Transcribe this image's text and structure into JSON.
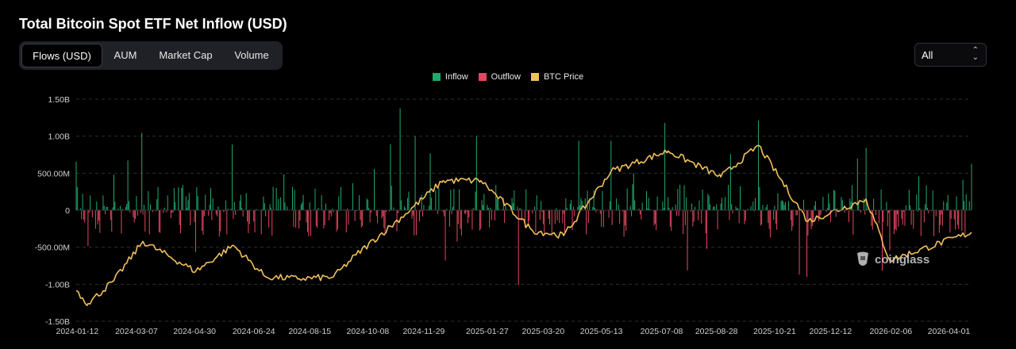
{
  "title": "Total Bitcoin Spot ETF Net Inflow (USD)",
  "tabs": [
    {
      "label": "Flows (USD)",
      "active": true
    },
    {
      "label": "AUM",
      "active": false
    },
    {
      "label": "Market Cap",
      "active": false
    },
    {
      "label": "Volume",
      "active": false
    }
  ],
  "range_select": {
    "value": "All"
  },
  "legend": [
    {
      "label": "Inflow",
      "color": "#21a86a"
    },
    {
      "label": "Outflow",
      "color": "#e0485f"
    },
    {
      "label": "BTC Price",
      "color": "#f0c05a"
    }
  ],
  "watermark": "coinglass",
  "chart_data": {
    "type": "bar",
    "title": "Total Bitcoin Spot ETF Net Inflow (USD)",
    "series_names": [
      "Inflow",
      "Outflow",
      "BTC Price"
    ],
    "y_ticks": [
      "1.50B",
      "1.00B",
      "500.00M",
      "0",
      "-500.00M",
      "-1.00B",
      "-1.50B"
    ],
    "ylim": [
      -1500000000,
      1500000000
    ],
    "x_ticks": [
      "2024-01-12",
      "2024-03-07",
      "2024-04-30",
      "2024-06-24",
      "2024-08-15",
      "2024-10-08",
      "2024-11-29",
      "2025-01-27",
      "2025-03-20",
      "2025-05-13",
      "2025-07-08",
      "2025-08-28",
      "2025-10-21",
      "2025-12-12",
      "2026-02-06",
      "2026-04-01"
    ],
    "x_range": [
      "2024-01-11",
      "2026-04-22"
    ],
    "grid": true,
    "legend_position": "top-center",
    "colors": {
      "inflow": "#21a86a",
      "outflow": "#e0485f",
      "price": "#f0c05a"
    },
    "flows": [
      {
        "date": "2024-01-11",
        "value": 655000000
      },
      {
        "date": "2024-01-22",
        "value": -483000000
      },
      {
        "date": "2024-02-05",
        "value": 200000000
      },
      {
        "date": "2024-02-15",
        "value": 478000000
      },
      {
        "date": "2024-02-28",
        "value": 673000000
      },
      {
        "date": "2024-03-12",
        "value": 1045000000
      },
      {
        "date": "2024-03-19",
        "value": -326000000
      },
      {
        "date": "2024-04-05",
        "value": 200000000
      },
      {
        "date": "2024-04-16",
        "value": -200000000
      },
      {
        "date": "2024-04-30",
        "value": -160000000
      },
      {
        "date": "2024-05-01",
        "value": -563000000
      },
      {
        "date": "2024-05-15",
        "value": 303000000
      },
      {
        "date": "2024-06-04",
        "value": 887000000
      },
      {
        "date": "2024-06-18",
        "value": -152000000
      },
      {
        "date": "2024-07-15",
        "value": 301000000
      },
      {
        "date": "2024-07-22",
        "value": 486000000
      },
      {
        "date": "2024-08-02",
        "value": -237000000
      },
      {
        "date": "2024-08-26",
        "value": 202000000
      },
      {
        "date": "2024-09-09",
        "value": -287000000
      },
      {
        "date": "2024-09-24",
        "value": 365000000
      },
      {
        "date": "2024-10-14",
        "value": 556000000
      },
      {
        "date": "2024-10-29",
        "value": 893000000
      },
      {
        "date": "2024-11-07",
        "value": 1376000000
      },
      {
        "date": "2024-11-21",
        "value": 1000000000
      },
      {
        "date": "2024-12-05",
        "value": 766000000
      },
      {
        "date": "2024-12-19",
        "value": -680000000
      },
      {
        "date": "2024-12-30",
        "value": -425000000
      },
      {
        "date": "2025-01-17",
        "value": 1000000000
      },
      {
        "date": "2025-02-04",
        "value": 340000000
      },
      {
        "date": "2025-02-25",
        "value": -1010000000
      },
      {
        "date": "2025-03-14",
        "value": 200000000
      },
      {
        "date": "2025-04-04",
        "value": -172000000
      },
      {
        "date": "2025-04-22",
        "value": 936000000
      },
      {
        "date": "2025-05-22",
        "value": 935000000
      },
      {
        "date": "2025-06-05",
        "value": -278000000
      },
      {
        "date": "2025-06-12",
        "value": 500000000
      },
      {
        "date": "2025-07-11",
        "value": 1180000000
      },
      {
        "date": "2025-08-01",
        "value": -812000000
      },
      {
        "date": "2025-08-19",
        "value": -523000000
      },
      {
        "date": "2025-09-10",
        "value": 757000000
      },
      {
        "date": "2025-10-06",
        "value": 1210000000
      },
      {
        "date": "2025-10-17",
        "value": -366000000
      },
      {
        "date": "2025-11-13",
        "value": -870000000
      },
      {
        "date": "2025-11-20",
        "value": -903000000
      },
      {
        "date": "2025-12-10",
        "value": 224000000
      },
      {
        "date": "2026-01-06",
        "value": 697000000
      },
      {
        "date": "2026-01-14",
        "value": 843000000
      },
      {
        "date": "2026-01-29",
        "value": -818000000
      },
      {
        "date": "2026-02-05",
        "value": -545000000
      },
      {
        "date": "2026-03-04",
        "value": 458000000
      },
      {
        "date": "2026-04-14",
        "value": 411000000
      },
      {
        "date": "2026-04-22",
        "value": 627000000
      }
    ],
    "price_anchors": [
      {
        "date": "2024-01-11",
        "value": 46600
      },
      {
        "date": "2024-01-22",
        "value": 39500
      },
      {
        "date": "2024-02-15",
        "value": 52000
      },
      {
        "date": "2024-03-13",
        "value": 73100
      },
      {
        "date": "2024-05-01",
        "value": 57000
      },
      {
        "date": "2024-06-05",
        "value": 71000
      },
      {
        "date": "2024-07-05",
        "value": 54000
      },
      {
        "date": "2024-08-05",
        "value": 53000
      },
      {
        "date": "2024-09-06",
        "value": 53900
      },
      {
        "date": "2024-09-27",
        "value": 65800
      },
      {
        "date": "2024-11-12",
        "value": 88000
      },
      {
        "date": "2024-12-17",
        "value": 106000
      },
      {
        "date": "2025-01-21",
        "value": 106000
      },
      {
        "date": "2025-03-10",
        "value": 79000
      },
      {
        "date": "2025-04-08",
        "value": 76300
      },
      {
        "date": "2025-05-22",
        "value": 111000
      },
      {
        "date": "2025-07-14",
        "value": 122000
      },
      {
        "date": "2025-09-01",
        "value": 108000
      },
      {
        "date": "2025-10-06",
        "value": 125000
      },
      {
        "date": "2025-11-21",
        "value": 84000
      },
      {
        "date": "2026-01-14",
        "value": 96000
      },
      {
        "date": "2026-02-05",
        "value": 63000
      },
      {
        "date": "2026-04-22",
        "value": 78000
      }
    ],
    "price_axis": {
      "min": 30000,
      "max": 150000,
      "shown": false
    }
  }
}
